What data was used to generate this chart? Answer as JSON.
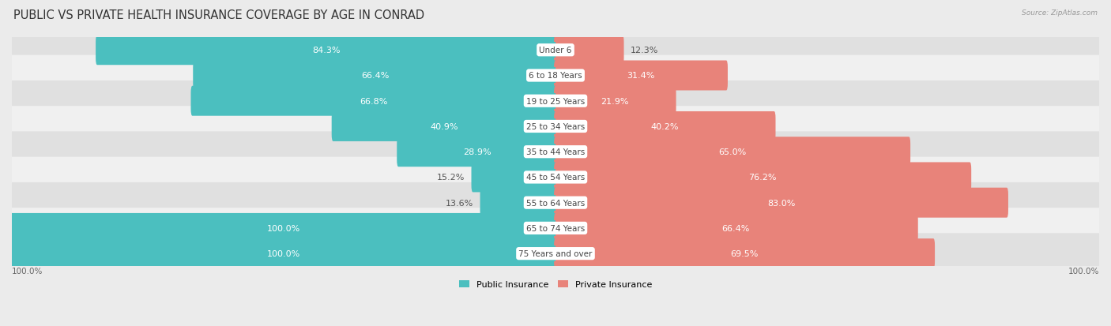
{
  "title": "PUBLIC VS PRIVATE HEALTH INSURANCE COVERAGE BY AGE IN CONRAD",
  "source": "Source: ZipAtlas.com",
  "categories": [
    "Under 6",
    "6 to 18 Years",
    "19 to 25 Years",
    "25 to 34 Years",
    "35 to 44 Years",
    "45 to 54 Years",
    "55 to 64 Years",
    "65 to 74 Years",
    "75 Years and over"
  ],
  "public_values": [
    84.3,
    66.4,
    66.8,
    40.9,
    28.9,
    15.2,
    13.6,
    100.0,
    100.0
  ],
  "private_values": [
    12.3,
    31.4,
    21.9,
    40.2,
    65.0,
    76.2,
    83.0,
    66.4,
    69.5
  ],
  "public_color": "#4bbfbf",
  "private_color": "#e8837a",
  "public_label": "Public Insurance",
  "private_label": "Private Insurance",
  "background_color": "#ebebeb",
  "row_colors": [
    "#e0e0e0",
    "#f0f0f0"
  ],
  "max_value": 100.0,
  "title_fontsize": 10.5,
  "label_fontsize": 8.0,
  "cat_fontsize": 7.5,
  "bar_height": 0.62,
  "inside_threshold": 20
}
